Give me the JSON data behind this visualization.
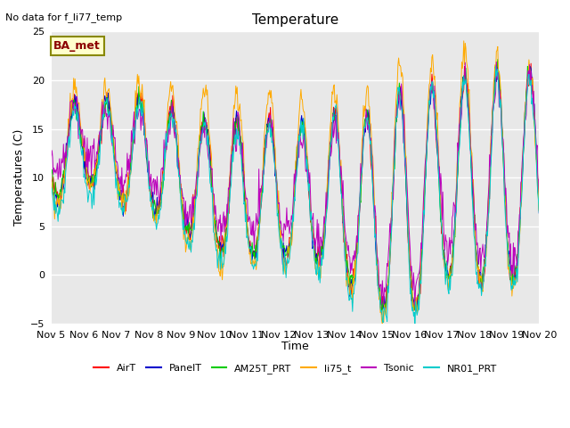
{
  "title": "Temperature",
  "no_data_text": "No data for f_li77_temp",
  "ylabel": "Temperatures (C)",
  "xlabel": "Time",
  "ba_met_label": "BA_met",
  "ylim": [
    -5,
    25
  ],
  "xlim_days": [
    5,
    20
  ],
  "x_ticks": [
    5,
    6,
    7,
    8,
    9,
    10,
    11,
    12,
    13,
    14,
    15,
    16,
    17,
    18,
    19,
    20
  ],
  "x_tick_labels": [
    "Nov 5",
    "Nov 6",
    "Nov 7",
    "Nov 8",
    "Nov 9",
    "Nov 10",
    "Nov 11",
    "Nov 12",
    "Nov 13",
    "Nov 14",
    "Nov 15",
    "Nov 16",
    "Nov 17",
    "Nov 18",
    "Nov 19",
    "Nov 20"
  ],
  "series": {
    "AirT": {
      "color": "#ff0000"
    },
    "PanelT": {
      "color": "#0000cc"
    },
    "AM25T_PRT": {
      "color": "#00cc00"
    },
    "li75_t": {
      "color": "#ffaa00"
    },
    "Tsonic": {
      "color": "#bb00bb"
    },
    "NR01_PRT": {
      "color": "#00cccc"
    }
  },
  "bg_color": "#e8e8e8",
  "grid_color": "#ffffff",
  "title_fontsize": 11,
  "axis_fontsize": 9,
  "tick_fontsize": 8,
  "no_data_fontsize": 8,
  "ba_met_fontsize": 9,
  "lw": 0.7
}
